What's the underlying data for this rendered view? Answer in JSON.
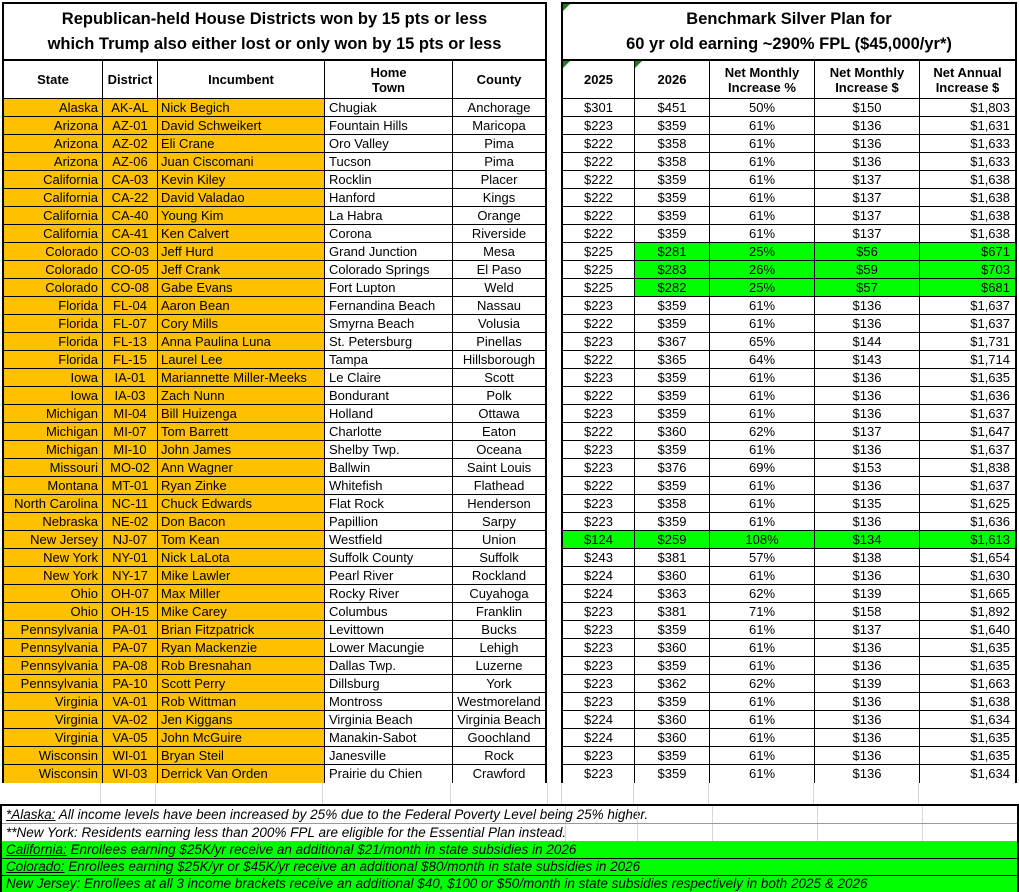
{
  "colors": {
    "highlight_orange": "#FFC000",
    "highlight_green": "#00FF00",
    "note_triangle_green": "#1E7B1E"
  },
  "left_table": {
    "title_line1": "Republican-held House Districts won by 15 pts or less",
    "title_line2": "which Trump also either lost or only won by 15 pts or less",
    "columns": [
      "State",
      "District",
      "Incumbent",
      "Home\nTown",
      "County"
    ]
  },
  "right_table": {
    "title_line1": "Benchmark Silver Plan for",
    "title_line2": "60 yr old earning ~290% FPL ($45,000/yr*)",
    "columns": [
      "2025",
      "2026",
      "Net Monthly\nIncrease %",
      "Net Monthly\nIncrease $",
      "Net Annual\nIncrease $"
    ],
    "note_triangle_cells": [
      "title",
      "2025",
      "2026"
    ]
  },
  "rows": [
    {
      "state": "Alaska",
      "district": "AK-AL",
      "incumbent": "Nick Begich",
      "town": "Chugiak",
      "county": "Anchorage",
      "p2025": "$301",
      "p2026": "$451",
      "pct": "50%",
      "monthly": "$150",
      "annual": "$1,803",
      "highlight": "none"
    },
    {
      "state": "Arizona",
      "district": "AZ-01",
      "incumbent": "David Schweikert",
      "town": "Fountain Hills",
      "county": "Maricopa",
      "p2025": "$223",
      "p2026": "$359",
      "pct": "61%",
      "monthly": "$136",
      "annual": "$1,631",
      "highlight": "none"
    },
    {
      "state": "Arizona",
      "district": "AZ-02",
      "incumbent": "Eli Crane",
      "town": "Oro Valley",
      "county": "Pima",
      "p2025": "$222",
      "p2026": "$358",
      "pct": "61%",
      "monthly": "$136",
      "annual": "$1,633",
      "highlight": "none"
    },
    {
      "state": "Arizona",
      "district": "AZ-06",
      "incumbent": "Juan Ciscomani",
      "town": "Tucson",
      "county": "Pima",
      "p2025": "$222",
      "p2026": "$358",
      "pct": "61%",
      "monthly": "$136",
      "annual": "$1,633",
      "highlight": "none"
    },
    {
      "state": "California",
      "district": "CA-03",
      "incumbent": "Kevin Kiley",
      "town": "Rocklin",
      "county": "Placer",
      "p2025": "$222",
      "p2026": "$359",
      "pct": "61%",
      "monthly": "$137",
      "annual": "$1,638",
      "highlight": "none"
    },
    {
      "state": "California",
      "district": "CA-22",
      "incumbent": "David Valadao",
      "town": "Hanford",
      "county": "Kings",
      "p2025": "$222",
      "p2026": "$359",
      "pct": "61%",
      "monthly": "$137",
      "annual": "$1,638",
      "highlight": "none"
    },
    {
      "state": "California",
      "district": "CA-40",
      "incumbent": "Young Kim",
      "town": "La Habra",
      "county": "Orange",
      "p2025": "$222",
      "p2026": "$359",
      "pct": "61%",
      "monthly": "$137",
      "annual": "$1,638",
      "highlight": "none"
    },
    {
      "state": "California",
      "district": "CA-41",
      "incumbent": "Ken Calvert",
      "town": "Corona",
      "county": "Riverside",
      "p2025": "$222",
      "p2026": "$359",
      "pct": "61%",
      "monthly": "$137",
      "annual": "$1,638",
      "highlight": "none"
    },
    {
      "state": "Colorado",
      "district": "CO-03",
      "incumbent": "Jeff Hurd",
      "town": "Grand Junction",
      "county": "Mesa",
      "p2025": "$225",
      "p2026": "$281",
      "pct": "25%",
      "monthly": "$56",
      "annual": "$671",
      "highlight": "partial"
    },
    {
      "state": "Colorado",
      "district": "CO-05",
      "incumbent": "Jeff Crank",
      "town": "Colorado Springs",
      "county": "El Paso",
      "p2025": "$225",
      "p2026": "$283",
      "pct": "26%",
      "monthly": "$59",
      "annual": "$703",
      "highlight": "partial"
    },
    {
      "state": "Colorado",
      "district": "CO-08",
      "incumbent": "Gabe Evans",
      "town": "Fort Lupton",
      "county": "Weld",
      "p2025": "$225",
      "p2026": "$282",
      "pct": "25%",
      "monthly": "$57",
      "annual": "$681",
      "highlight": "partial"
    },
    {
      "state": "Florida",
      "district": "FL-04",
      "incumbent": "Aaron Bean",
      "town": "Fernandina Beach",
      "county": "Nassau",
      "p2025": "$223",
      "p2026": "$359",
      "pct": "61%",
      "monthly": "$136",
      "annual": "$1,637",
      "highlight": "none"
    },
    {
      "state": "Florida",
      "district": "FL-07",
      "incumbent": "Cory Mills",
      "town": "Smyrna Beach",
      "county": "Volusia",
      "p2025": "$222",
      "p2026": "$359",
      "pct": "61%",
      "monthly": "$136",
      "annual": "$1,637",
      "highlight": "none"
    },
    {
      "state": "Florida",
      "district": "FL-13",
      "incumbent": "Anna Paulina Luna",
      "town": "St. Petersburg",
      "county": "Pinellas",
      "p2025": "$223",
      "p2026": "$367",
      "pct": "65%",
      "monthly": "$144",
      "annual": "$1,731",
      "highlight": "none"
    },
    {
      "state": "Florida",
      "district": "FL-15",
      "incumbent": "Laurel Lee",
      "town": "Tampa",
      "county": "Hillsborough",
      "p2025": "$222",
      "p2026": "$365",
      "pct": "64%",
      "monthly": "$143",
      "annual": "$1,714",
      "highlight": "none"
    },
    {
      "state": "Iowa",
      "district": "IA-01",
      "incumbent": "Mariannette Miller-Meeks",
      "town": "Le Claire",
      "county": "Scott",
      "p2025": "$223",
      "p2026": "$359",
      "pct": "61%",
      "monthly": "$136",
      "annual": "$1,635",
      "highlight": "none"
    },
    {
      "state": "Iowa",
      "district": "IA-03",
      "incumbent": "Zach Nunn",
      "town": "Bondurant",
      "county": "Polk",
      "p2025": "$222",
      "p2026": "$359",
      "pct": "61%",
      "monthly": "$136",
      "annual": "$1,636",
      "highlight": "none"
    },
    {
      "state": "Michigan",
      "district": "MI-04",
      "incumbent": "Bill Huizenga",
      "town": "Holland",
      "county": "Ottawa",
      "p2025": "$223",
      "p2026": "$359",
      "pct": "61%",
      "monthly": "$136",
      "annual": "$1,637",
      "highlight": "none"
    },
    {
      "state": "Michigan",
      "district": "MI-07",
      "incumbent": "Tom Barrett",
      "town": "Charlotte",
      "county": "Eaton",
      "p2025": "$222",
      "p2026": "$360",
      "pct": "62%",
      "monthly": "$137",
      "annual": "$1,647",
      "highlight": "none"
    },
    {
      "state": "Michigan",
      "district": "MI-10",
      "incumbent": "John James",
      "town": "Shelby Twp.",
      "county": "Oceana",
      "p2025": "$223",
      "p2026": "$359",
      "pct": "61%",
      "monthly": "$136",
      "annual": "$1,637",
      "highlight": "none"
    },
    {
      "state": "Missouri",
      "district": "MO-02",
      "incumbent": "Ann Wagner",
      "town": "Ballwin",
      "county": "Saint Louis",
      "p2025": "$223",
      "p2026": "$376",
      "pct": "69%",
      "monthly": "$153",
      "annual": "$1,838",
      "highlight": "none"
    },
    {
      "state": "Montana",
      "district": "MT-01",
      "incumbent": "Ryan Zinke",
      "town": "Whitefish",
      "county": "Flathead",
      "p2025": "$222",
      "p2026": "$359",
      "pct": "61%",
      "monthly": "$136",
      "annual": "$1,637",
      "highlight": "none"
    },
    {
      "state": "North Carolina",
      "district": "NC-11",
      "incumbent": "Chuck Edwards",
      "town": "Flat Rock",
      "county": "Henderson",
      "p2025": "$223",
      "p2026": "$358",
      "pct": "61%",
      "monthly": "$135",
      "annual": "$1,625",
      "highlight": "none"
    },
    {
      "state": "Nebraska",
      "district": "NE-02",
      "incumbent": "Don Bacon",
      "town": "Papillion",
      "county": "Sarpy",
      "p2025": "$223",
      "p2026": "$359",
      "pct": "61%",
      "monthly": "$136",
      "annual": "$1,636",
      "highlight": "none"
    },
    {
      "state": "New Jersey",
      "district": "NJ-07",
      "incumbent": "Tom Kean",
      "town": "Westfield",
      "county": "Union",
      "p2025": "$124",
      "p2026": "$259",
      "pct": "108%",
      "monthly": "$134",
      "annual": "$1,613",
      "highlight": "full"
    },
    {
      "state": "New York",
      "district": "NY-01",
      "incumbent": "Nick LaLota",
      "town": "Suffolk County",
      "county": "Suffolk",
      "p2025": "$243",
      "p2026": "$381",
      "pct": "57%",
      "monthly": "$138",
      "annual": "$1,654",
      "highlight": "none"
    },
    {
      "state": "New York",
      "district": "NY-17",
      "incumbent": "Mike Lawler",
      "town": "Pearl River",
      "county": "Rockland",
      "p2025": "$224",
      "p2026": "$360",
      "pct": "61%",
      "monthly": "$136",
      "annual": "$1,630",
      "highlight": "none"
    },
    {
      "state": "Ohio",
      "district": "OH-07",
      "incumbent": "Max Miller",
      "town": "Rocky River",
      "county": "Cuyahoga",
      "p2025": "$224",
      "p2026": "$363",
      "pct": "62%",
      "monthly": "$139",
      "annual": "$1,665",
      "highlight": "none"
    },
    {
      "state": "Ohio",
      "district": "OH-15",
      "incumbent": "Mike Carey",
      "town": "Columbus",
      "county": "Franklin",
      "p2025": "$223",
      "p2026": "$381",
      "pct": "71%",
      "monthly": "$158",
      "annual": "$1,892",
      "highlight": "none"
    },
    {
      "state": "Pennsylvania",
      "district": "PA-01",
      "incumbent": "Brian Fitzpatrick",
      "town": "Levittown",
      "county": "Bucks",
      "p2025": "$223",
      "p2026": "$359",
      "pct": "61%",
      "monthly": "$137",
      "annual": "$1,640",
      "highlight": "none"
    },
    {
      "state": "Pennsylvania",
      "district": "PA-07",
      "incumbent": "Ryan Mackenzie",
      "town": "Lower Macungie",
      "county": "Lehigh",
      "p2025": "$223",
      "p2026": "$360",
      "pct": "61%",
      "monthly": "$136",
      "annual": "$1,635",
      "highlight": "none"
    },
    {
      "state": "Pennsylvania",
      "district": "PA-08",
      "incumbent": "Rob Bresnahan",
      "town": "Dallas Twp.",
      "county": "Luzerne",
      "p2025": "$223",
      "p2026": "$359",
      "pct": "61%",
      "monthly": "$136",
      "annual": "$1,635",
      "highlight": "none"
    },
    {
      "state": "Pennsylvania",
      "district": "PA-10",
      "incumbent": "Scott Perry",
      "town": "Dillsburg",
      "county": "York",
      "p2025": "$223",
      "p2026": "$362",
      "pct": "62%",
      "monthly": "$139",
      "annual": "$1,663",
      "highlight": "none"
    },
    {
      "state": "Virginia",
      "district": "VA-01",
      "incumbent": "Rob Wittman",
      "town": "Montross",
      "county": "Westmoreland",
      "p2025": "$223",
      "p2026": "$359",
      "pct": "61%",
      "monthly": "$136",
      "annual": "$1,638",
      "highlight": "none"
    },
    {
      "state": "Virginia",
      "district": "VA-02",
      "incumbent": "Jen Kiggans",
      "town": "Virginia Beach",
      "county": "Virginia Beach",
      "p2025": "$224",
      "p2026": "$360",
      "pct": "61%",
      "monthly": "$136",
      "annual": "$1,634",
      "highlight": "none"
    },
    {
      "state": "Virginia",
      "district": "VA-05",
      "incumbent": "John McGuire",
      "town": "Manakin-Sabot",
      "county": "Goochland",
      "p2025": "$224",
      "p2026": "$360",
      "pct": "61%",
      "monthly": "$136",
      "annual": "$1,635",
      "highlight": "none"
    },
    {
      "state": "Wisconsin",
      "district": "WI-01",
      "incumbent": "Bryan Steil",
      "town": "Janesville",
      "county": "Rock",
      "p2025": "$223",
      "p2026": "$359",
      "pct": "61%",
      "monthly": "$136",
      "annual": "$1,635",
      "highlight": "none"
    },
    {
      "state": "Wisconsin",
      "district": "WI-03",
      "incumbent": "Derrick Van Orden",
      "town": "Prairie du Chien",
      "county": "Crawford",
      "p2025": "$223",
      "p2026": "$359",
      "pct": "61%",
      "monthly": "$136",
      "annual": "$1,634",
      "highlight": "none"
    }
  ],
  "footnotes": [
    {
      "prefix": "*Alaska:",
      "text": " All income levels have been increased by 25% due to the Federal Poverty Level being 25% higher.",
      "bg": "white",
      "underline": true
    },
    {
      "prefix": "**New York:",
      "text": " Residents earning less than 200% FPL are eligible for the Essential Plan instead.",
      "bg": "white",
      "underline": false
    },
    {
      "prefix": "California:",
      "text": " Enrollees earning $25K/yr receive an additional $21/month in state subsidies in 2026",
      "bg": "green",
      "underline": true
    },
    {
      "prefix": "Colorado:",
      "text": " Enrollees earning $25K/yr or $45K/yr receive an additional $80/month in state subsidies in 2026",
      "bg": "green",
      "underline": true
    },
    {
      "prefix": "New Jersey:",
      "text": " Enrollees at all 3 income brackets receive an additional $40, $100 or $50/month in state subsidies respectively in both 2025 & 2026",
      "bg": "green",
      "underline": false
    }
  ]
}
